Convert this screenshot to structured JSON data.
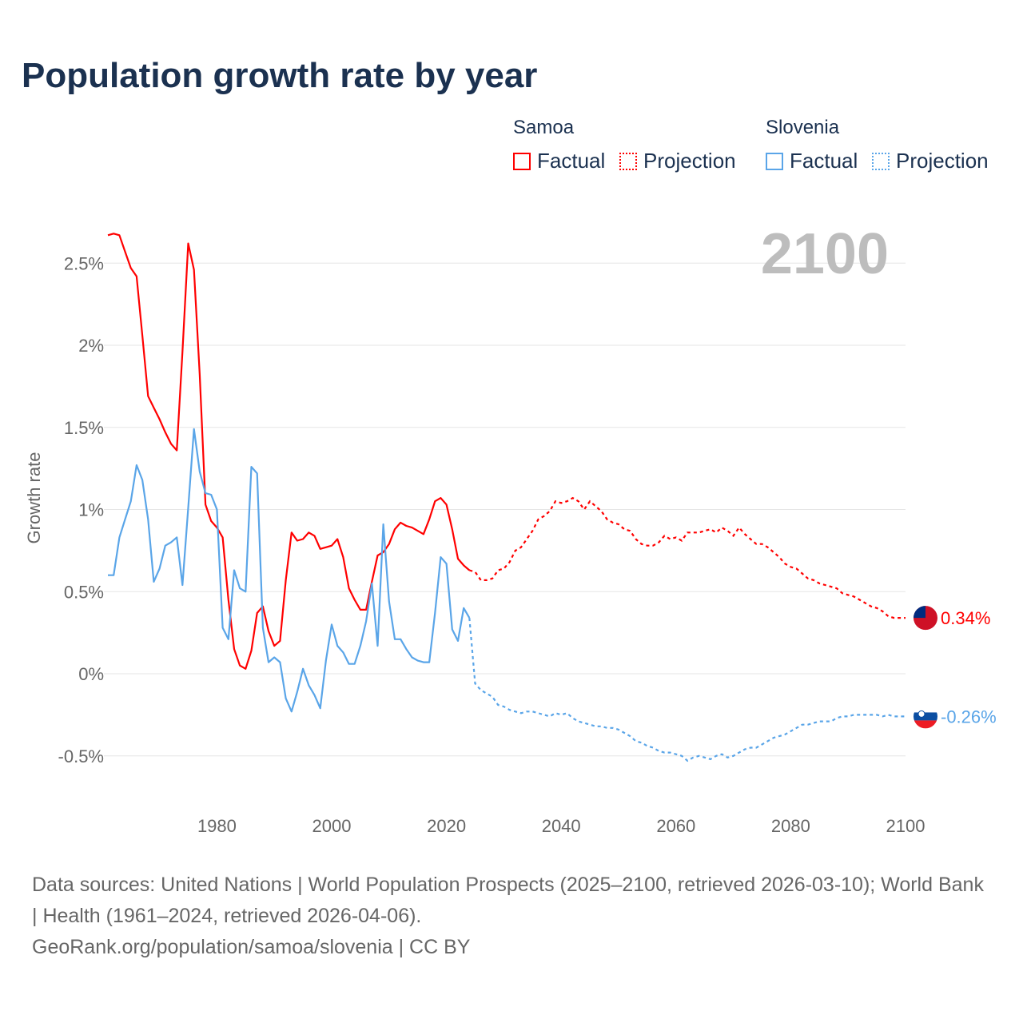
{
  "title": "Population growth rate by year",
  "legend": {
    "groups": [
      {
        "name": "Samoa",
        "color": "#ff0000",
        "factual": "Factual",
        "projection": "Projection"
      },
      {
        "name": "Slovenia",
        "color": "#5aa5e8",
        "factual": "Factual",
        "projection": "Projection"
      }
    ]
  },
  "year_display": "2100",
  "footer": {
    "sources": "Data sources: United Nations | World Population Prospects (2025–2100, retrieved 2026-03-10); World Bank | Health (1961–2024, retrieved 2026-04-06).",
    "attribution": "GeoRank.org/population/samoa/slovenia | CC BY"
  },
  "chart_data": {
    "type": "line",
    "title": "Population growth rate by year",
    "xlabel": "",
    "ylabel": "Growth rate",
    "xlim": [
      1961,
      2100
    ],
    "ylim": [
      -0.65,
      2.75
    ],
    "x_ticks": [
      1980,
      2000,
      2020,
      2040,
      2060,
      2080,
      2100
    ],
    "y_ticks": [
      -0.5,
      0,
      0.5,
      1,
      1.5,
      2,
      2.5
    ],
    "y_tick_labels": [
      "-0.5%",
      "0%",
      "0.5%",
      "1%",
      "1.5%",
      "2%",
      "2.5%"
    ],
    "grid": true,
    "factual_range": [
      1961,
      2024
    ],
    "projection_range": [
      2024,
      2100
    ],
    "series": [
      {
        "name": "Samoa",
        "color": "#ff0000",
        "end_label": "0.34%",
        "values": [
          2.67,
          2.68,
          2.67,
          2.57,
          2.47,
          2.42,
          2.06,
          1.69,
          1.62,
          1.55,
          1.47,
          1.4,
          1.36,
          1.96,
          2.62,
          2.46,
          1.82,
          1.03,
          0.93,
          0.89,
          0.83,
          0.45,
          0.15,
          0.05,
          0.03,
          0.14,
          0.37,
          0.41,
          0.26,
          0.17,
          0.2,
          0.57,
          0.86,
          0.81,
          0.82,
          0.86,
          0.84,
          0.76,
          0.77,
          0.78,
          0.82,
          0.71,
          0.52,
          0.45,
          0.39,
          0.39,
          0.56,
          0.72,
          0.74,
          0.79,
          0.88,
          0.92,
          0.9,
          0.89,
          0.87,
          0.85,
          0.94,
          1.05,
          1.07,
          1.03,
          0.88,
          0.7,
          0.66,
          0.63,
          0.62,
          0.57,
          0.57,
          0.58,
          0.63,
          0.64,
          0.68,
          0.75,
          0.77,
          0.82,
          0.87,
          0.94,
          0.96,
          0.99,
          1.05,
          1.04,
          1.05,
          1.07,
          1.05,
          1.0,
          1.05,
          1.02,
          0.99,
          0.94,
          0.92,
          0.91,
          0.88,
          0.87,
          0.82,
          0.79,
          0.78,
          0.78,
          0.8,
          0.84,
          0.82,
          0.83,
          0.81,
          0.86,
          0.86,
          0.86,
          0.87,
          0.88,
          0.86,
          0.89,
          0.87,
          0.84,
          0.89,
          0.85,
          0.82,
          0.79,
          0.79,
          0.77,
          0.74,
          0.71,
          0.67,
          0.65,
          0.64,
          0.61,
          0.58,
          0.57,
          0.55,
          0.54,
          0.53,
          0.52,
          0.49,
          0.48,
          0.47,
          0.45,
          0.43,
          0.41,
          0.4,
          0.38,
          0.35,
          0.34,
          0.34,
          0.34
        ]
      },
      {
        "name": "Slovenia",
        "color": "#5aa5e8",
        "end_label": "-0.26%",
        "values": [
          0.6,
          0.6,
          0.83,
          0.94,
          1.05,
          1.27,
          1.18,
          0.94,
          0.56,
          0.64,
          0.78,
          0.8,
          0.83,
          0.54,
          1.01,
          1.49,
          1.23,
          1.1,
          1.09,
          1.0,
          0.28,
          0.21,
          0.63,
          0.52,
          0.5,
          1.26,
          1.22,
          0.28,
          0.07,
          0.1,
          0.07,
          -0.15,
          -0.23,
          -0.11,
          0.03,
          -0.07,
          -0.13,
          -0.21,
          0.08,
          0.3,
          0.17,
          0.13,
          0.06,
          0.06,
          0.17,
          0.32,
          0.55,
          0.17,
          0.91,
          0.44,
          0.21,
          0.21,
          0.15,
          0.1,
          0.08,
          0.07,
          0.07,
          0.37,
          0.71,
          0.67,
          0.27,
          0.2,
          0.4,
          0.34,
          -0.06,
          -0.1,
          -0.12,
          -0.14,
          -0.19,
          -0.2,
          -0.22,
          -0.23,
          -0.24,
          -0.23,
          -0.23,
          -0.24,
          -0.25,
          -0.26,
          -0.24,
          -0.25,
          -0.24,
          -0.27,
          -0.29,
          -0.3,
          -0.31,
          -0.32,
          -0.32,
          -0.33,
          -0.33,
          -0.34,
          -0.36,
          -0.38,
          -0.41,
          -0.42,
          -0.44,
          -0.45,
          -0.47,
          -0.48,
          -0.48,
          -0.49,
          -0.5,
          -0.53,
          -0.51,
          -0.5,
          -0.51,
          -0.52,
          -0.5,
          -0.49,
          -0.51,
          -0.5,
          -0.48,
          -0.46,
          -0.45,
          -0.45,
          -0.43,
          -0.41,
          -0.39,
          -0.38,
          -0.37,
          -0.35,
          -0.33,
          -0.31,
          -0.31,
          -0.3,
          -0.29,
          -0.29,
          -0.29,
          -0.27,
          -0.26,
          -0.26,
          -0.25,
          -0.25,
          -0.25,
          -0.25,
          -0.25,
          -0.26,
          -0.25,
          -0.26,
          -0.26,
          -0.26
        ]
      }
    ]
  }
}
